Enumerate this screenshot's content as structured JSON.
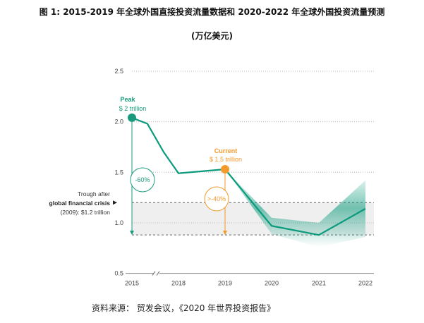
{
  "title": "图 1: 2015-2019 年全球外国直接投资流量数据和 2020-2022 年全球外国投资流量预测",
  "unit": "(万亿美元)",
  "source": "资料来源： 贸发会议，《2020 年世界投资报告》",
  "chart_data": {
    "type": "line",
    "ylim": [
      0.5,
      2.5
    ],
    "yticks": [
      "0.5",
      "1.0",
      "1.5",
      "2.0",
      "2.5"
    ],
    "xticks": [
      "2015",
      "2018",
      "2019",
      "2020",
      "2021",
      "2022"
    ],
    "axis_break": "between 2015 and 2018",
    "grid": "dotted horizontal",
    "series": [
      {
        "x": [
          2015,
          2016,
          2017,
          2018,
          2019,
          2020,
          2021,
          2022
        ],
        "values": [
          2.04,
          1.98,
          1.7,
          1.49,
          1.53,
          0.97,
          0.88,
          1.14
        ],
        "color": "#0a9a7c",
        "projection_from": 2019
      }
    ],
    "annotations": {
      "peak": {
        "title": "Peak",
        "value": "$ 2 trillion",
        "color": "#1a9a7c"
      },
      "current": {
        "title": "Current",
        "value": "$ 1.5 trillion",
        "color": "#f39a2b"
      },
      "peak_change": "-60%",
      "current_change": ">-40%",
      "trough_line1": "Trough after",
      "trough_line2": "global financial crisis",
      "trough_line3": "(2009): $1.2 trillion",
      "trough_value": 1.2,
      "lower_line": 0.88
    }
  }
}
